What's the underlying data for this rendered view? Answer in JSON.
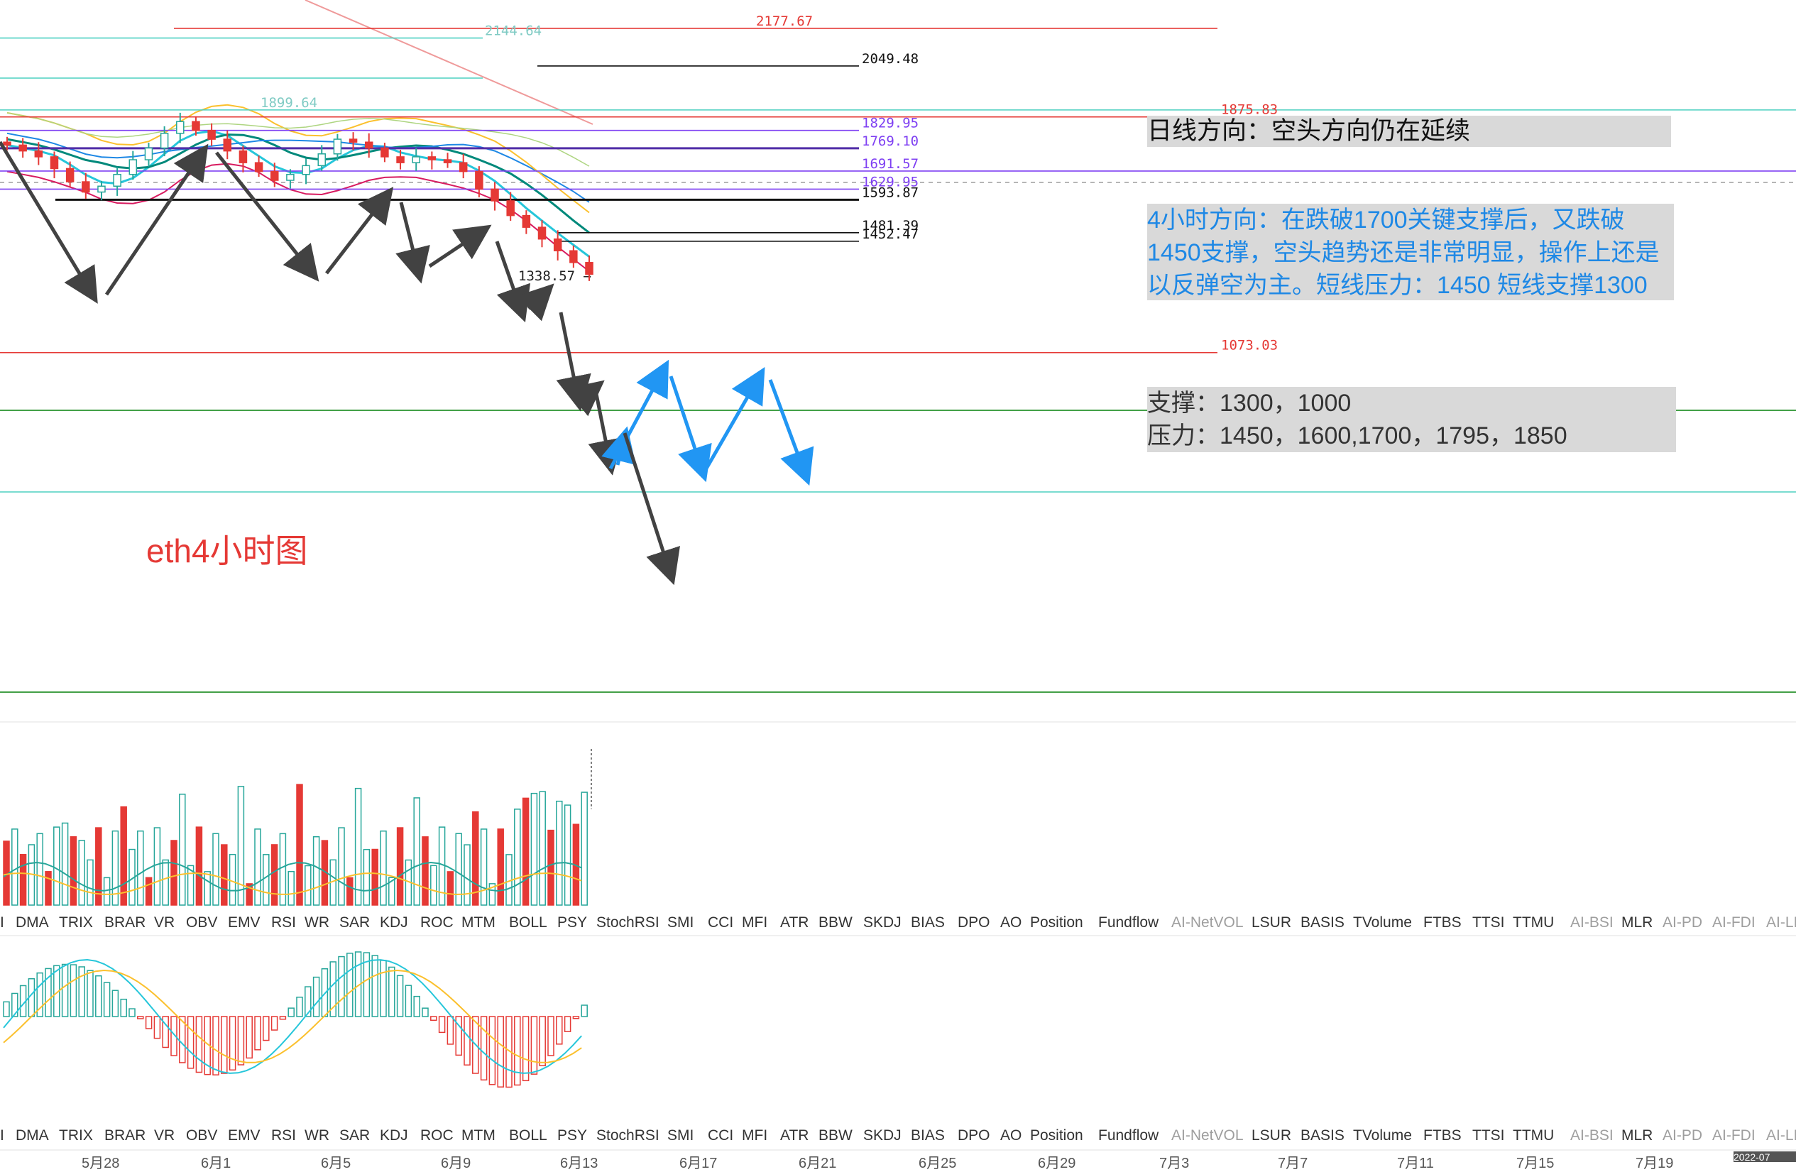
{
  "header": {
    "daily_direction": "日线方向：空头方向仍在延续",
    "four_hour_direction": "4小时方向：在跌破1700关键支撑后，又跌破1450支撑，空头趋势还是非常明显，操作上还是以反弹空为主。短线压力：1450  短线支撑1300",
    "support": "支撑：1300，1000",
    "resistance": "压力：1450，1600,1700，1795，1850",
    "chart_label": "eth4小时图"
  },
  "colors": {
    "up": "#26a69a",
    "down": "#e53935",
    "projection_blue": "#2196f3",
    "projection_dark": "#424242",
    "level_red": "#e53935",
    "level_purple": "#7e3ff2",
    "level_teal": "#4dd0c1",
    "level_green": "#43a047"
  },
  "chart_data": {
    "type": "candlestick",
    "title": "eth4小时图",
    "y_range": [
      960,
      2250
    ],
    "price_levels": [
      {
        "value": 2177.67,
        "label": "2177.67",
        "color": "red"
      },
      {
        "value": 2144.64,
        "label": "2144.64",
        "color": "teal"
      },
      {
        "value": 2049.48,
        "label": "2049.48",
        "color": "black"
      },
      {
        "value": 1899.64,
        "label": "1899.64",
        "color": "teal"
      },
      {
        "value": 1875.83,
        "label": "1875.83",
        "color": "red"
      },
      {
        "value": 1829.95,
        "label": "1829.95",
        "color": "purple"
      },
      {
        "value": 1769.1,
        "label": "1769.10",
        "color": "purple"
      },
      {
        "value": 1691.57,
        "label": "1691.57",
        "color": "purple"
      },
      {
        "value": 1629.95,
        "label": "1629.95",
        "color": "purple"
      },
      {
        "value": 1593.87,
        "label": "1593.87",
        "color": "black"
      },
      {
        "value": 1481.39,
        "label": "1481.39",
        "color": "black"
      },
      {
        "value": 1452.47,
        "label": "1452.47",
        "color": "black"
      },
      {
        "value": 1338.57,
        "label": "1338.57 →",
        "color": "black"
      },
      {
        "value": 1073.03,
        "label": "1073.03",
        "color": "red"
      }
    ],
    "x_dates": [
      "5月28",
      "6月1",
      "6月5",
      "6月9",
      "6月13",
      "6月17",
      "6月21",
      "6月25",
      "6月29",
      "7月3",
      "7月7",
      "7月11",
      "7月15",
      "7月19"
    ],
    "corner_date": "2022-07",
    "series_close": [
      1780,
      1760,
      1740,
      1700,
      1655,
      1620,
      1640,
      1680,
      1730,
      1770,
      1820,
      1860,
      1830,
      1800,
      1760,
      1720,
      1690,
      1660,
      1680,
      1710,
      1750,
      1800,
      1790,
      1770,
      1740,
      1720,
      1740,
      1730,
      1720,
      1690,
      1630,
      1590,
      1540,
      1500,
      1460,
      1420,
      1380,
      1340
    ],
    "indicator_tabs": [
      "I",
      "DMA",
      "TRIX",
      "BRAR",
      "VR",
      "OBV",
      "EMV",
      "RSI",
      "WR",
      "SAR",
      "KDJ",
      "ROC",
      "MTM",
      "BOLL",
      "PSY",
      "StochRSI",
      "SMI",
      "CCI",
      "MFI",
      "ATR",
      "BBW",
      "SKDJ",
      "BIAS",
      "DPO",
      "AO",
      "Position",
      "Fundflow",
      "AI-NetVOL",
      "LSUR",
      "BASIS",
      "TVolume",
      "FTBS",
      "TTSI",
      "TTMU",
      "AI-BSI",
      "MLR",
      "AI-PD",
      "AI-FDI",
      "AI-LI"
    ]
  }
}
